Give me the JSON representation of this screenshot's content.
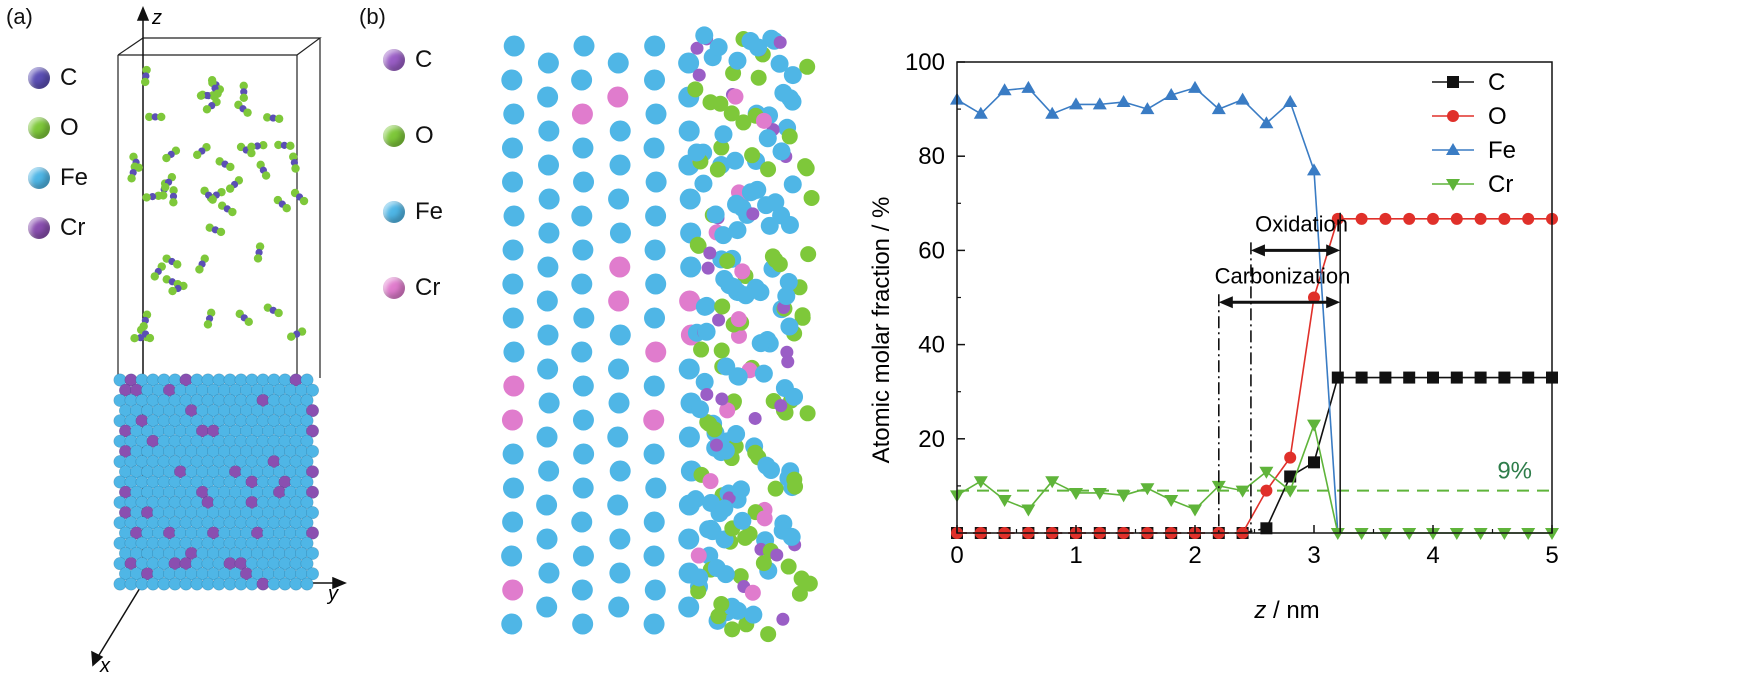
{
  "panel_a": {
    "label": "(a)",
    "axis_z": "z",
    "axis_x": "x",
    "axis_y": "y",
    "legend": [
      {
        "name": "C",
        "color": "#5b4fb5"
      },
      {
        "name": "O",
        "color": "#7ec83a"
      },
      {
        "name": "Fe",
        "color": "#4fb6e6"
      },
      {
        "name": "Cr",
        "color": "#8a4fb0"
      }
    ]
  },
  "panel_b": {
    "label": "(b)",
    "legend": [
      {
        "name": "C",
        "color": "#9a5ec6"
      },
      {
        "name": "O",
        "color": "#7ec83a"
      },
      {
        "name": "Fe",
        "color": "#4fb6e6"
      },
      {
        "name": "Cr",
        "color": "#e07ccd"
      }
    ]
  },
  "chart_data": {
    "type": "line",
    "xlabel_italic": "z",
    "xlabel_rest": " / nm",
    "ylabel": "Atomic molar fraction / %",
    "xlim": [
      0,
      5
    ],
    "ylim": [
      0,
      100
    ],
    "xticks": [
      "0",
      "1",
      "2",
      "3",
      "4",
      "5"
    ],
    "yticks": [
      "20",
      "40",
      "60",
      "80",
      "100"
    ],
    "legend_position": "top-right",
    "series": [
      {
        "name": "C",
        "color": "#111111",
        "marker": "square",
        "dashed_until": 2.6,
        "x": [
          0,
          0.2,
          0.4,
          0.6,
          0.8,
          1.0,
          1.2,
          1.4,
          1.6,
          1.8,
          2.0,
          2.2,
          2.4,
          2.6,
          2.8,
          3.0,
          3.2,
          3.4,
          3.6,
          3.8,
          4.0,
          4.2,
          4.4,
          4.6,
          4.8,
          5.0
        ],
        "y": [
          0,
          0,
          0,
          0,
          0,
          0,
          0,
          0,
          0,
          0,
          0,
          0,
          0,
          1,
          12,
          15,
          33,
          33,
          33,
          33,
          33,
          33,
          33,
          33,
          33,
          33
        ]
      },
      {
        "name": "O",
        "color": "#e0302a",
        "marker": "circle",
        "dashed_until": 2.4,
        "x": [
          0,
          0.2,
          0.4,
          0.6,
          0.8,
          1.0,
          1.2,
          1.4,
          1.6,
          1.8,
          2.0,
          2.2,
          2.4,
          2.6,
          2.8,
          3.0,
          3.2,
          3.4,
          3.6,
          3.8,
          4.0,
          4.2,
          4.4,
          4.6,
          4.8,
          5.0
        ],
        "y": [
          0,
          0,
          0,
          0,
          0,
          0,
          0,
          0,
          0,
          0,
          0,
          0,
          0,
          9,
          16,
          50,
          66.7,
          66.7,
          66.7,
          66.7,
          66.7,
          66.7,
          66.7,
          66.7,
          66.7,
          66.7
        ]
      },
      {
        "name": "Fe",
        "color": "#3a7cc4",
        "marker": "triangle-up",
        "dashed_until": null,
        "x": [
          0,
          0.2,
          0.4,
          0.6,
          0.8,
          1.0,
          1.2,
          1.4,
          1.6,
          1.8,
          2.0,
          2.2,
          2.4,
          2.6,
          2.8,
          3.0,
          3.2
        ],
        "y": [
          92,
          89,
          94,
          94.5,
          89,
          91,
          91,
          91.5,
          90,
          93,
          94.5,
          90,
          92,
          87,
          91.5,
          77,
          0
        ]
      },
      {
        "name": "Cr",
        "color": "#5fb43a",
        "marker": "triangle-down",
        "dashed_until": null,
        "x": [
          0,
          0.2,
          0.4,
          0.6,
          0.8,
          1.0,
          1.2,
          1.4,
          1.6,
          1.8,
          2.0,
          2.2,
          2.4,
          2.6,
          2.8,
          3.0,
          3.2,
          3.4,
          3.6,
          3.8,
          4.0,
          4.2,
          4.4,
          4.6,
          4.8,
          5.0
        ],
        "y": [
          8,
          11,
          7,
          5,
          11,
          8.5,
          8.5,
          8,
          9.5,
          7,
          5,
          10,
          9,
          13,
          9,
          23,
          0,
          0,
          0,
          0,
          0,
          0,
          0,
          0,
          0,
          0
        ]
      }
    ],
    "reference_line": {
      "y": 9,
      "label": "9%",
      "color": "#5fb43a"
    },
    "annotations": [
      {
        "text": "Oxidation",
        "from": 2.47,
        "to": 3.22,
        "y_text": 64,
        "y_arrow": 60,
        "vline_style": "dashdot",
        "vline_x": 2.47
      },
      {
        "text": "Carbonization",
        "from": 2.2,
        "to": 3.22,
        "y_text": 53,
        "y_arrow": 49,
        "vline_style": "dashdot",
        "vline_x": 2.2
      }
    ],
    "boundary_x": 3.22
  }
}
